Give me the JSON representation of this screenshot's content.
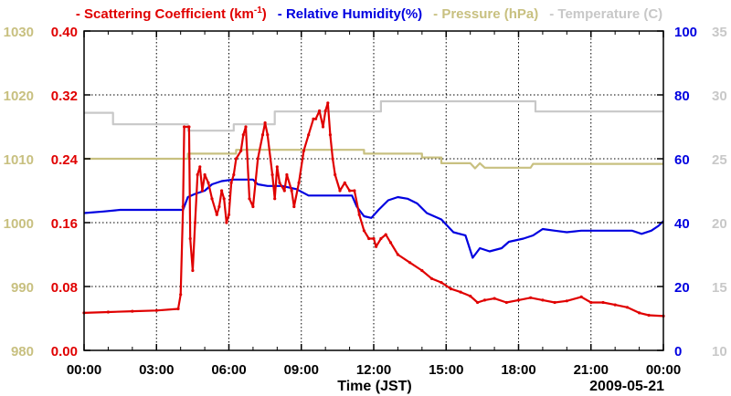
{
  "chart_data": {
    "type": "line",
    "legend": [
      {
        "key": "scat",
        "text": "Scattering Coefficient (km",
        "sup": "-1",
        "tail": ")",
        "color": "#e00000"
      },
      {
        "key": "rh",
        "text": "Relative Humidity(%)",
        "color": "#0000e0"
      },
      {
        "key": "pres",
        "text": "Pressure (hPa)",
        "color": "#c8c080"
      },
      {
        "key": "temp",
        "text": "Temperature (C)",
        "color": "#c8c8c8"
      }
    ],
    "legend_marker": "-",
    "xlabel": "Time (JST)",
    "date_label": "2009-05-21",
    "x_range": [
      0,
      24
    ],
    "x_ticks": [
      0,
      3,
      6,
      9,
      12,
      15,
      18,
      21,
      24
    ],
    "x_tick_labels": [
      "00:00",
      "03:00",
      "06:00",
      "09:00",
      "12:00",
      "15:00",
      "18:00",
      "21:00",
      "00:00"
    ],
    "axes": {
      "pressure": {
        "range": [
          980,
          1030
        ],
        "ticks": [
          "980",
          "990",
          "1000",
          "1010",
          "1020",
          "1030"
        ],
        "color": "#c8c080"
      },
      "scattering": {
        "range": [
          0,
          0.4
        ],
        "ticks": [
          "0.00",
          "0.08",
          "0.16",
          "0.24",
          "0.32",
          "0.40"
        ],
        "color": "#e00000"
      },
      "humidity": {
        "range": [
          0,
          100
        ],
        "ticks": [
          "0",
          "20",
          "40",
          "60",
          "80",
          "100"
        ],
        "color": "#0000e0"
      },
      "temperature": {
        "range": [
          10,
          35
        ],
        "ticks": [
          "10",
          "15",
          "20",
          "25",
          "30",
          "35"
        ],
        "color": "#c8c8c8"
      }
    },
    "grid": true,
    "series": [
      {
        "name": "Temperature",
        "axis": "temperature",
        "color": "#c8c8c8",
        "step": true,
        "points": [
          [
            0,
            28.6
          ],
          [
            1.2,
            28.6
          ],
          [
            1.2,
            27.7
          ],
          [
            3.5,
            27.7
          ],
          [
            4.3,
            27.7
          ],
          [
            4.3,
            27.2
          ],
          [
            6.2,
            27.2
          ],
          [
            6.2,
            27.7
          ],
          [
            7.9,
            27.7
          ],
          [
            7.9,
            28.7
          ],
          [
            12.3,
            28.7
          ],
          [
            12.3,
            29.5
          ],
          [
            18.7,
            29.5
          ],
          [
            18.7,
            28.7
          ],
          [
            24,
            28.7
          ]
        ]
      },
      {
        "name": "Pressure",
        "axis": "pressure",
        "color": "#c8c080",
        "step": true,
        "points": [
          [
            0,
            1010
          ],
          [
            4.3,
            1010
          ],
          [
            4.3,
            1010.8
          ],
          [
            6.3,
            1010.8
          ],
          [
            6.3,
            1011.4
          ],
          [
            11.6,
            1011.4
          ],
          [
            11.6,
            1010.8
          ],
          [
            14,
            1010.8
          ],
          [
            14,
            1010.2
          ],
          [
            14.8,
            1010.2
          ],
          [
            14.8,
            1009.3
          ],
          [
            16,
            1009.3
          ],
          [
            16.2,
            1008.5
          ],
          [
            16.4,
            1009.3
          ],
          [
            16.6,
            1008.6
          ],
          [
            18.5,
            1008.6
          ],
          [
            18.6,
            1009.2
          ],
          [
            24,
            1009.2
          ]
        ]
      },
      {
        "name": "Relative Humidity",
        "axis": "humidity",
        "color": "#0000e0",
        "points": [
          [
            0,
            43
          ],
          [
            0.8,
            43.5
          ],
          [
            1.5,
            44
          ],
          [
            3,
            44
          ],
          [
            4.1,
            44
          ],
          [
            4.3,
            48
          ],
          [
            4.6,
            49
          ],
          [
            5,
            50
          ],
          [
            5.3,
            52
          ],
          [
            5.7,
            53
          ],
          [
            6.2,
            53.5
          ],
          [
            7,
            53.5
          ],
          [
            7.2,
            52
          ],
          [
            7.6,
            51.5
          ],
          [
            8.2,
            51.5
          ],
          [
            8.8,
            50.5
          ],
          [
            9.3,
            48.5
          ],
          [
            10.2,
            48.5
          ],
          [
            11.1,
            48.5
          ],
          [
            11.3,
            45
          ],
          [
            11.6,
            42
          ],
          [
            11.9,
            41.5
          ],
          [
            12.2,
            44
          ],
          [
            12.6,
            47
          ],
          [
            13,
            48
          ],
          [
            13.4,
            47.5
          ],
          [
            13.8,
            46
          ],
          [
            14.2,
            43
          ],
          [
            14.8,
            41
          ],
          [
            15.3,
            37
          ],
          [
            15.8,
            36
          ],
          [
            16.1,
            29
          ],
          [
            16.4,
            32
          ],
          [
            16.8,
            31
          ],
          [
            17.3,
            32
          ],
          [
            17.6,
            34
          ],
          [
            18.2,
            35
          ],
          [
            18.6,
            36
          ],
          [
            19,
            38
          ],
          [
            19.5,
            37.5
          ],
          [
            20,
            37
          ],
          [
            20.6,
            37.5
          ],
          [
            21.5,
            37.5
          ],
          [
            22,
            37.5
          ],
          [
            22.7,
            37.5
          ],
          [
            23.1,
            36.5
          ],
          [
            23.5,
            37.5
          ],
          [
            23.8,
            39
          ],
          [
            24,
            40.5
          ]
        ]
      },
      {
        "name": "Scattering Coefficient",
        "axis": "scattering",
        "color": "#e00000",
        "markers": true,
        "points": [
          [
            0,
            0.047
          ],
          [
            1,
            0.048
          ],
          [
            2,
            0.049
          ],
          [
            3,
            0.05
          ],
          [
            3.9,
            0.052
          ],
          [
            4.0,
            0.07
          ],
          [
            4.1,
            0.18
          ],
          [
            4.15,
            0.28
          ],
          [
            4.35,
            0.28
          ],
          [
            4.4,
            0.14
          ],
          [
            4.5,
            0.1
          ],
          [
            4.6,
            0.16
          ],
          [
            4.7,
            0.22
          ],
          [
            4.8,
            0.23
          ],
          [
            4.9,
            0.2
          ],
          [
            5.0,
            0.22
          ],
          [
            5.15,
            0.21
          ],
          [
            5.3,
            0.19
          ],
          [
            5.5,
            0.17
          ],
          [
            5.6,
            0.18
          ],
          [
            5.7,
            0.2
          ],
          [
            5.8,
            0.19
          ],
          [
            5.9,
            0.16
          ],
          [
            6.0,
            0.17
          ],
          [
            6.1,
            0.21
          ],
          [
            6.2,
            0.22
          ],
          [
            6.3,
            0.24
          ],
          [
            6.5,
            0.25
          ],
          [
            6.6,
            0.27
          ],
          [
            6.7,
            0.28
          ],
          [
            6.85,
            0.19
          ],
          [
            7.0,
            0.18
          ],
          [
            7.1,
            0.21
          ],
          [
            7.2,
            0.24
          ],
          [
            7.4,
            0.27
          ],
          [
            7.5,
            0.285
          ],
          [
            7.6,
            0.27
          ],
          [
            7.8,
            0.22
          ],
          [
            7.9,
            0.19
          ],
          [
            8.0,
            0.23
          ],
          [
            8.1,
            0.21
          ],
          [
            8.3,
            0.2
          ],
          [
            8.4,
            0.22
          ],
          [
            8.6,
            0.2
          ],
          [
            8.7,
            0.18
          ],
          [
            8.9,
            0.21
          ],
          [
            9.1,
            0.25
          ],
          [
            9.3,
            0.27
          ],
          [
            9.5,
            0.29
          ],
          [
            9.6,
            0.29
          ],
          [
            9.75,
            0.3
          ],
          [
            9.9,
            0.28
          ],
          [
            10.0,
            0.3
          ],
          [
            10.1,
            0.31
          ],
          [
            10.2,
            0.27
          ],
          [
            10.3,
            0.24
          ],
          [
            10.4,
            0.22
          ],
          [
            10.6,
            0.2
          ],
          [
            10.8,
            0.21
          ],
          [
            11.0,
            0.2
          ],
          [
            11.2,
            0.2
          ],
          [
            11.4,
            0.17
          ],
          [
            11.6,
            0.15
          ],
          [
            11.8,
            0.14
          ],
          [
            12.0,
            0.14
          ],
          [
            12.1,
            0.13
          ],
          [
            12.3,
            0.14
          ],
          [
            12.5,
            0.145
          ],
          [
            12.7,
            0.135
          ],
          [
            13.0,
            0.12
          ],
          [
            13.5,
            0.11
          ],
          [
            14.0,
            0.1
          ],
          [
            14.4,
            0.09
          ],
          [
            14.8,
            0.085
          ],
          [
            15.2,
            0.077
          ],
          [
            15.6,
            0.073
          ],
          [
            16.0,
            0.068
          ],
          [
            16.3,
            0.06
          ],
          [
            16.6,
            0.063
          ],
          [
            17.0,
            0.065
          ],
          [
            17.5,
            0.06
          ],
          [
            18.0,
            0.063
          ],
          [
            18.5,
            0.066
          ],
          [
            19.0,
            0.063
          ],
          [
            19.5,
            0.06
          ],
          [
            20.0,
            0.062
          ],
          [
            20.6,
            0.067
          ],
          [
            21.0,
            0.06
          ],
          [
            21.5,
            0.06
          ],
          [
            22.0,
            0.057
          ],
          [
            22.5,
            0.054
          ],
          [
            23.0,
            0.047
          ],
          [
            23.4,
            0.044
          ],
          [
            24.0,
            0.043
          ]
        ]
      }
    ]
  }
}
